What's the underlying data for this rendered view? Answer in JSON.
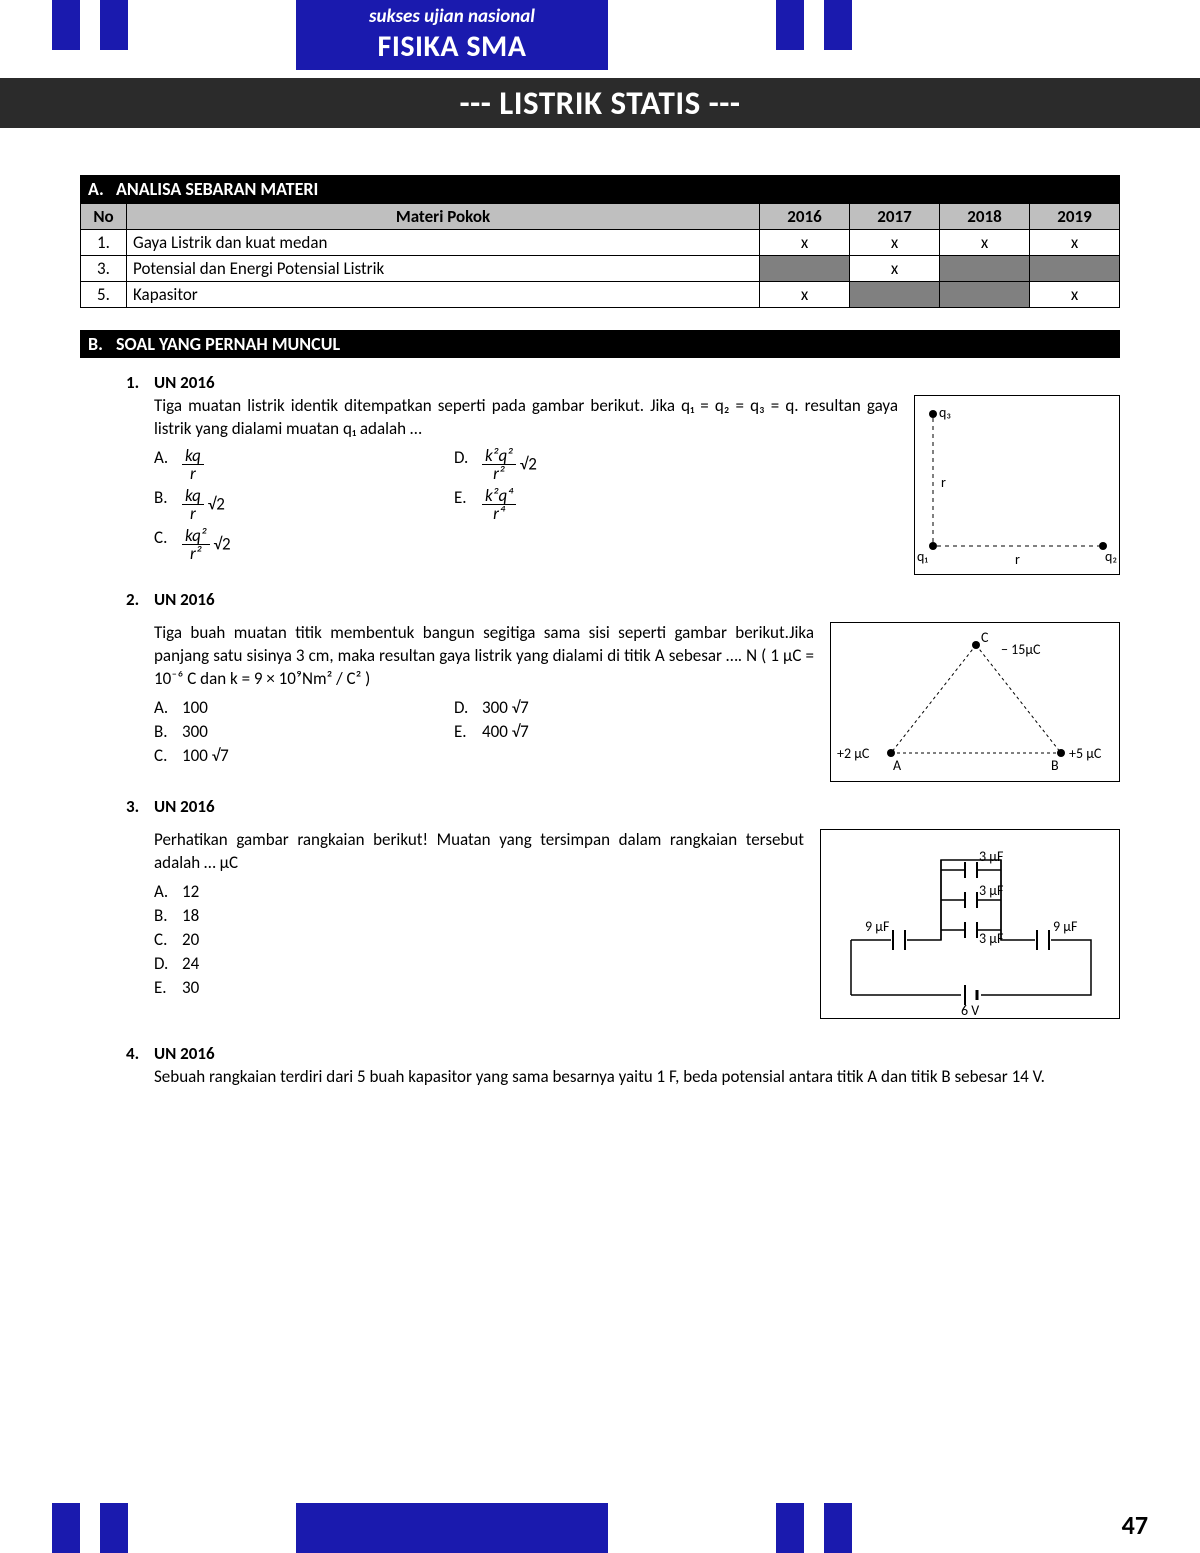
{
  "colors": {
    "brand_blue": "#1a1aae",
    "title_bg": "#2b2b2b",
    "table_header": "#bfbfbf",
    "table_shade": "#808080",
    "text": "#000000",
    "page_bg": "#ffffff"
  },
  "header": {
    "subtitle": "sukses ujian nasional",
    "title": "FISIKA SMA"
  },
  "chapter_title": "--- LISTRIK STATIS ---",
  "sectionA": {
    "letter": "A.",
    "title": "ANALISA SEBARAN MATERI",
    "columns": [
      "No",
      "Materi Pokok",
      "2016",
      "2017",
      "2018",
      "2019"
    ],
    "rows": [
      {
        "no": "1.",
        "materi": "Gaya Listrik dan kuat medan",
        "y2016": "x",
        "y2017": "x",
        "y2018": "x",
        "y2019": "x",
        "shade": []
      },
      {
        "no": "3.",
        "materi": "Potensial dan Energi Potensial Listrik",
        "y2016": "",
        "y2017": "x",
        "y2018": "",
        "y2019": "",
        "shade": [
          "2016",
          "2018",
          "2019"
        ]
      },
      {
        "no": "5.",
        "materi": "Kapasitor",
        "y2016": "x",
        "y2017": "",
        "y2018": "",
        "y2019": "x",
        "shade": [
          "2017",
          "2018"
        ]
      }
    ]
  },
  "sectionB": {
    "letter": "B.",
    "title": "SOAL YANG PERNAH MUNCUL"
  },
  "q1": {
    "num": "1.",
    "heading": "UN 2016",
    "text": "Tiga muatan listrik identik ditempatkan seperti pada gambar berikut.  Jika q₁ = q₂ = q₃ = q. resultan gaya listrik yang dialami muatan q₁ adalah …",
    "opts": {
      "A": {
        "num": "kq",
        "den": "r",
        "tail": ""
      },
      "B": {
        "num": "kq",
        "den": "r",
        "tail": "√2"
      },
      "C": {
        "num": "kq²",
        "den": "r²",
        "tail": "√2"
      },
      "D": {
        "num": "k²q²",
        "den": "r²",
        "tail": "√2"
      },
      "E": {
        "num": "k²q⁴",
        "den": "r⁴",
        "tail": ""
      }
    },
    "fig": {
      "q1": "q₁",
      "q2": "q₂",
      "q3": "q₃",
      "r": "r"
    }
  },
  "q2": {
    "num": "2.",
    "heading": "UN 2016",
    "text_l1": "Tiga buah muatan titik membentuk bangun segitiga sama sisi seperti gambar berikut.Jika panjang satu sisinya 3 cm, maka resultan gaya listrik yang dialami di titik A sebesar …. N ( 1 μC = 10⁻⁶ C dan k = 9 × 10⁹Nm² / C² )",
    "opts": {
      "A": "100",
      "B": "300",
      "C": "100 √7",
      "D": "300 √7",
      "E": "400 √7"
    },
    "fig": {
      "A": "A",
      "B": "B",
      "C": "C",
      "qA": "+2 µC",
      "qB": "+5 µC",
      "qC": "− 15µC"
    }
  },
  "q3": {
    "num": "3.",
    "heading": "UN 2016",
    "text": "Perhatikan gambar rangkaian berikut!  Muatan yang tersimpan dalam rangkaian tersebut adalah … µC",
    "opts": {
      "A": "12",
      "B": "18",
      "C": "20",
      "D": "24",
      "E": "30"
    },
    "fig": {
      "c1": "3 µF",
      "c2": "3 µF",
      "c3": "3 µF",
      "cl": "9 µF",
      "cr": "9 µF",
      "v": "6 V"
    }
  },
  "q4": {
    "num": "4.",
    "heading": "UN 2016",
    "text": "Sebuah rangkaian terdiri dari 5 buah kapasitor yang sama besarnya yaitu 1 F, beda potensial antara titik A dan titik B sebesar 14 V."
  },
  "page_number": "47"
}
